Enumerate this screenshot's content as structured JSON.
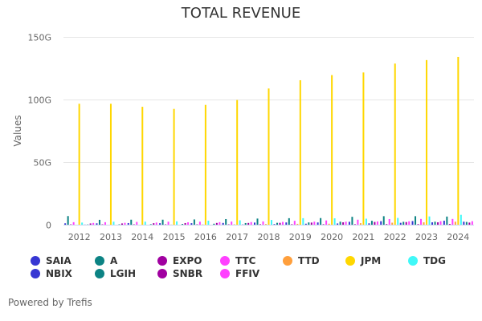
{
  "chart_data": {
    "type": "bar",
    "title": "TOTAL REVENUE",
    "xlabel": "",
    "ylabel": "Values",
    "ylim": [
      0,
      150
    ],
    "y_unit": "G",
    "yticks": [
      "0",
      "50G",
      "100G",
      "150G"
    ],
    "ytick_values": [
      0,
      50,
      100,
      150
    ],
    "grid": true,
    "legend_position": "bottom",
    "categories": [
      "2012",
      "2013",
      "2014",
      "2015",
      "2016",
      "2017",
      "2018",
      "2019",
      "2020",
      "2021",
      "2022",
      "2023",
      "2024"
    ],
    "series": [
      {
        "name": "SAIA",
        "color": "#3636d3",
        "values": [
          1.1,
          1.1,
          1.3,
          1.2,
          1.2,
          1.4,
          1.7,
          1.8,
          1.8,
          2.3,
          2.8,
          2.9,
          3.2
        ]
      },
      {
        "name": "A",
        "color": "#0c8384",
        "values": [
          6.9,
          3.9,
          4.0,
          4.0,
          4.2,
          4.5,
          4.9,
          5.2,
          5.3,
          6.3,
          6.8,
          6.8,
          6.5
        ]
      },
      {
        "name": "EXPO",
        "color": "#a000a0",
        "values": [
          0.3,
          0.3,
          0.3,
          0.3,
          0.3,
          0.3,
          0.4,
          0.4,
          0.4,
          0.4,
          0.5,
          0.5,
          0.6
        ]
      },
      {
        "name": "TTC",
        "color": "#ff40ff",
        "values": [
          2.0,
          2.0,
          2.2,
          2.4,
          2.4,
          2.5,
          2.6,
          3.1,
          3.4,
          4.0,
          4.5,
          4.6,
          4.6
        ]
      },
      {
        "name": "TTD",
        "color": "#ff9f3c",
        "values": [
          0.0,
          0.0,
          0.0,
          0.1,
          0.2,
          0.3,
          0.5,
          0.7,
          0.8,
          1.2,
          1.6,
          1.9,
          2.4
        ]
      },
      {
        "name": "JPM",
        "color": "#ffd700",
        "values": [
          96.6,
          96.6,
          94.2,
          92.5,
          95.7,
          99.6,
          108.8,
          115.4,
          119.5,
          121.6,
          128.7,
          131.5,
          134.0
        ]
      },
      {
        "name": "TDG",
        "color": "#40f8f8",
        "values": [
          1.7,
          2.4,
          2.4,
          2.7,
          3.2,
          3.5,
          3.8,
          5.2,
          5.1,
          4.8,
          5.4,
          6.6,
          7.9
        ]
      },
      {
        "name": "NBIX",
        "color": "#3636d3",
        "values": [
          0.1,
          0.0,
          0.0,
          0.0,
          0.0,
          0.2,
          0.5,
          0.8,
          1.0,
          1.1,
          1.5,
          1.9,
          2.4
        ]
      },
      {
        "name": "LGIH",
        "color": "#0c8384",
        "values": [
          0.2,
          0.3,
          0.4,
          0.6,
          0.8,
          1.3,
          1.5,
          1.8,
          2.4,
          3.1,
          2.3,
          2.4,
          2.2
        ]
      },
      {
        "name": "SNBR",
        "color": "#a000a0",
        "values": [
          1.0,
          1.0,
          1.2,
          1.3,
          1.4,
          1.4,
          1.5,
          1.7,
          1.9,
          2.2,
          2.1,
          1.9,
          1.7
        ]
      },
      {
        "name": "FFIV",
        "color": "#ff40ff",
        "values": [
          1.4,
          1.5,
          1.7,
          1.9,
          2.0,
          2.1,
          2.2,
          2.4,
          2.4,
          2.6,
          2.7,
          2.8,
          2.8
        ]
      }
    ]
  },
  "legend": {
    "items": [
      {
        "name": "SAIA",
        "color": "#3636d3"
      },
      {
        "name": "A",
        "color": "#0c8384"
      },
      {
        "name": "EXPO",
        "color": "#a000a0"
      },
      {
        "name": "TTC",
        "color": "#ff40ff"
      },
      {
        "name": "TTD",
        "color": "#ff9f3c"
      },
      {
        "name": "JPM",
        "color": "#ffd700"
      },
      {
        "name": "TDG",
        "color": "#40f8f8"
      },
      {
        "name": "NBIX",
        "color": "#3636d3"
      },
      {
        "name": "LGIH",
        "color": "#0c8384"
      },
      {
        "name": "SNBR",
        "color": "#a000a0"
      },
      {
        "name": "FFIV",
        "color": "#ff40ff"
      }
    ]
  },
  "credits": "Powered by Trefis"
}
